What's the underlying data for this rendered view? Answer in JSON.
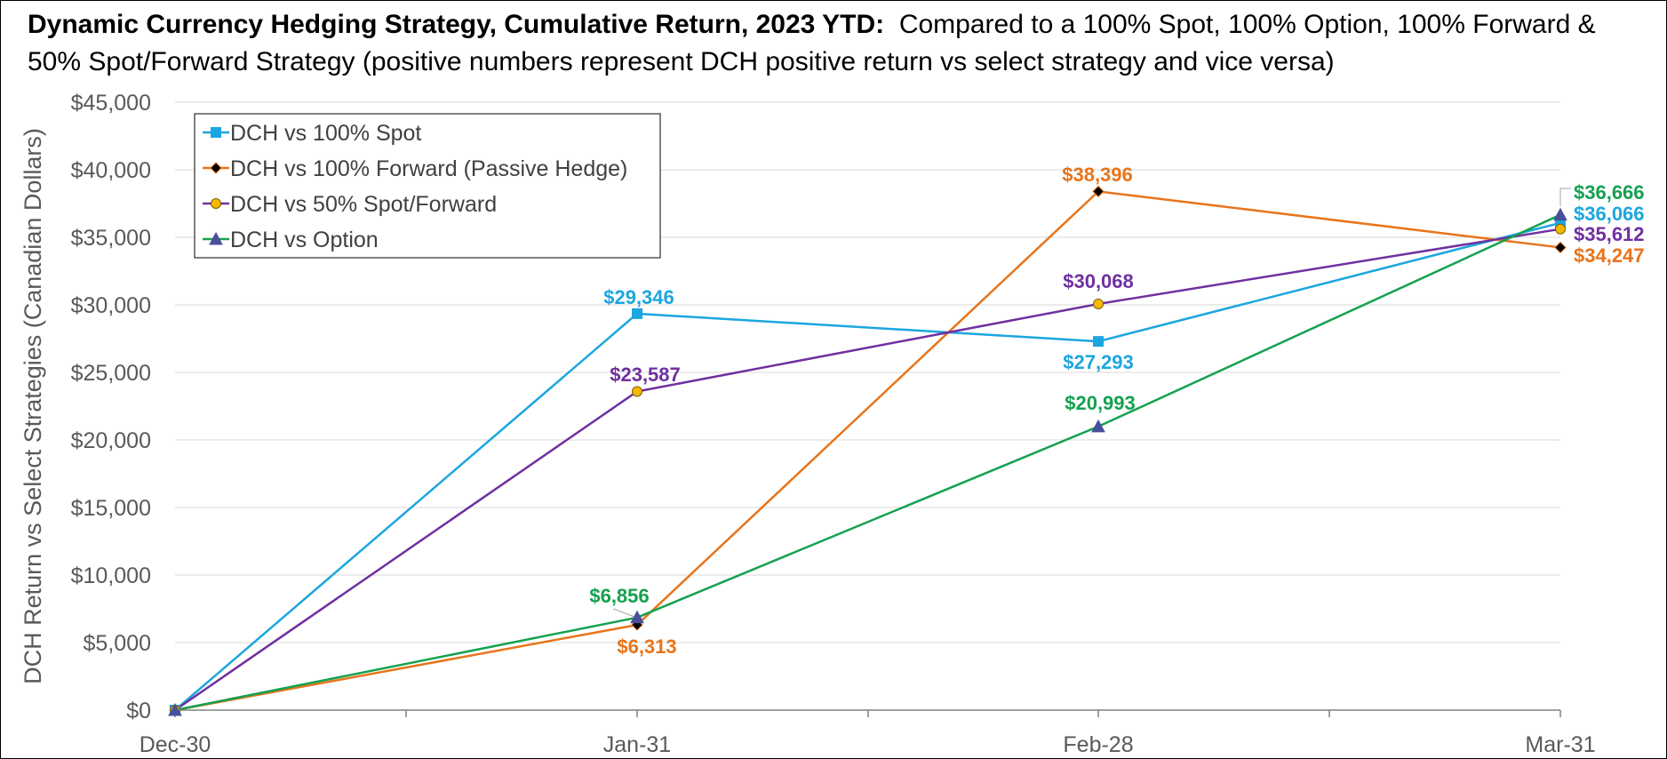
{
  "title_bold": "Dynamic Currency Hedging Strategy, Cumulative Return, 2023 YTD:",
  "title_rest": "Compared to a 100% Spot, 100% Option, 100% Forward & 50% Spot/Forward Strategy (positive numbers represent DCH positive return vs select strategy and vice versa)",
  "chart_data": {
    "type": "line",
    "categories": [
      "Dec-30",
      "Jan-31",
      "Feb-28",
      "Mar-31"
    ],
    "ylabel": "DCH Return vs Select Strategies (Canadian Dollars)",
    "xlabel": "",
    "ylim": [
      0,
      45000
    ],
    "yticks": [
      0,
      5000,
      10000,
      15000,
      20000,
      25000,
      30000,
      35000,
      40000,
      45000
    ],
    "ytick_labels": [
      "$0",
      "$5,000",
      "$10,000",
      "$15,000",
      "$20,000",
      "$25,000",
      "$30,000",
      "$35,000",
      "$40,000",
      "$45,000"
    ],
    "grid": true,
    "legend_position": "top-left",
    "series": [
      {
        "name": "DCH vs 100% Spot",
        "color": "#1CA6DF",
        "marker": "square",
        "values": [
          0,
          29346,
          27293,
          36066
        ],
        "labels": [
          "",
          "$29,346",
          "$27,293",
          "$36,066"
        ]
      },
      {
        "name": "DCH vs 100% Forward (Passive Hedge)",
        "color": "#E8741A",
        "marker": "diamond",
        "values": [
          0,
          6313,
          38396,
          34247
        ],
        "labels": [
          "",
          "$6,313",
          "$38,396",
          "$34,247"
        ]
      },
      {
        "name": "DCH vs 50% Spot/Forward",
        "color": "#7030A0",
        "marker": "circle",
        "values": [
          0,
          23587,
          30068,
          35612
        ],
        "labels": [
          "",
          "$23,587",
          "$30,068",
          "$35,612"
        ]
      },
      {
        "name": "DCH vs Option",
        "color": "#14A150",
        "marker": "triangle",
        "values": [
          0,
          6856,
          20993,
          36666
        ],
        "labels": [
          "",
          "$6,856",
          "$20,993",
          "$36,666"
        ]
      }
    ]
  }
}
